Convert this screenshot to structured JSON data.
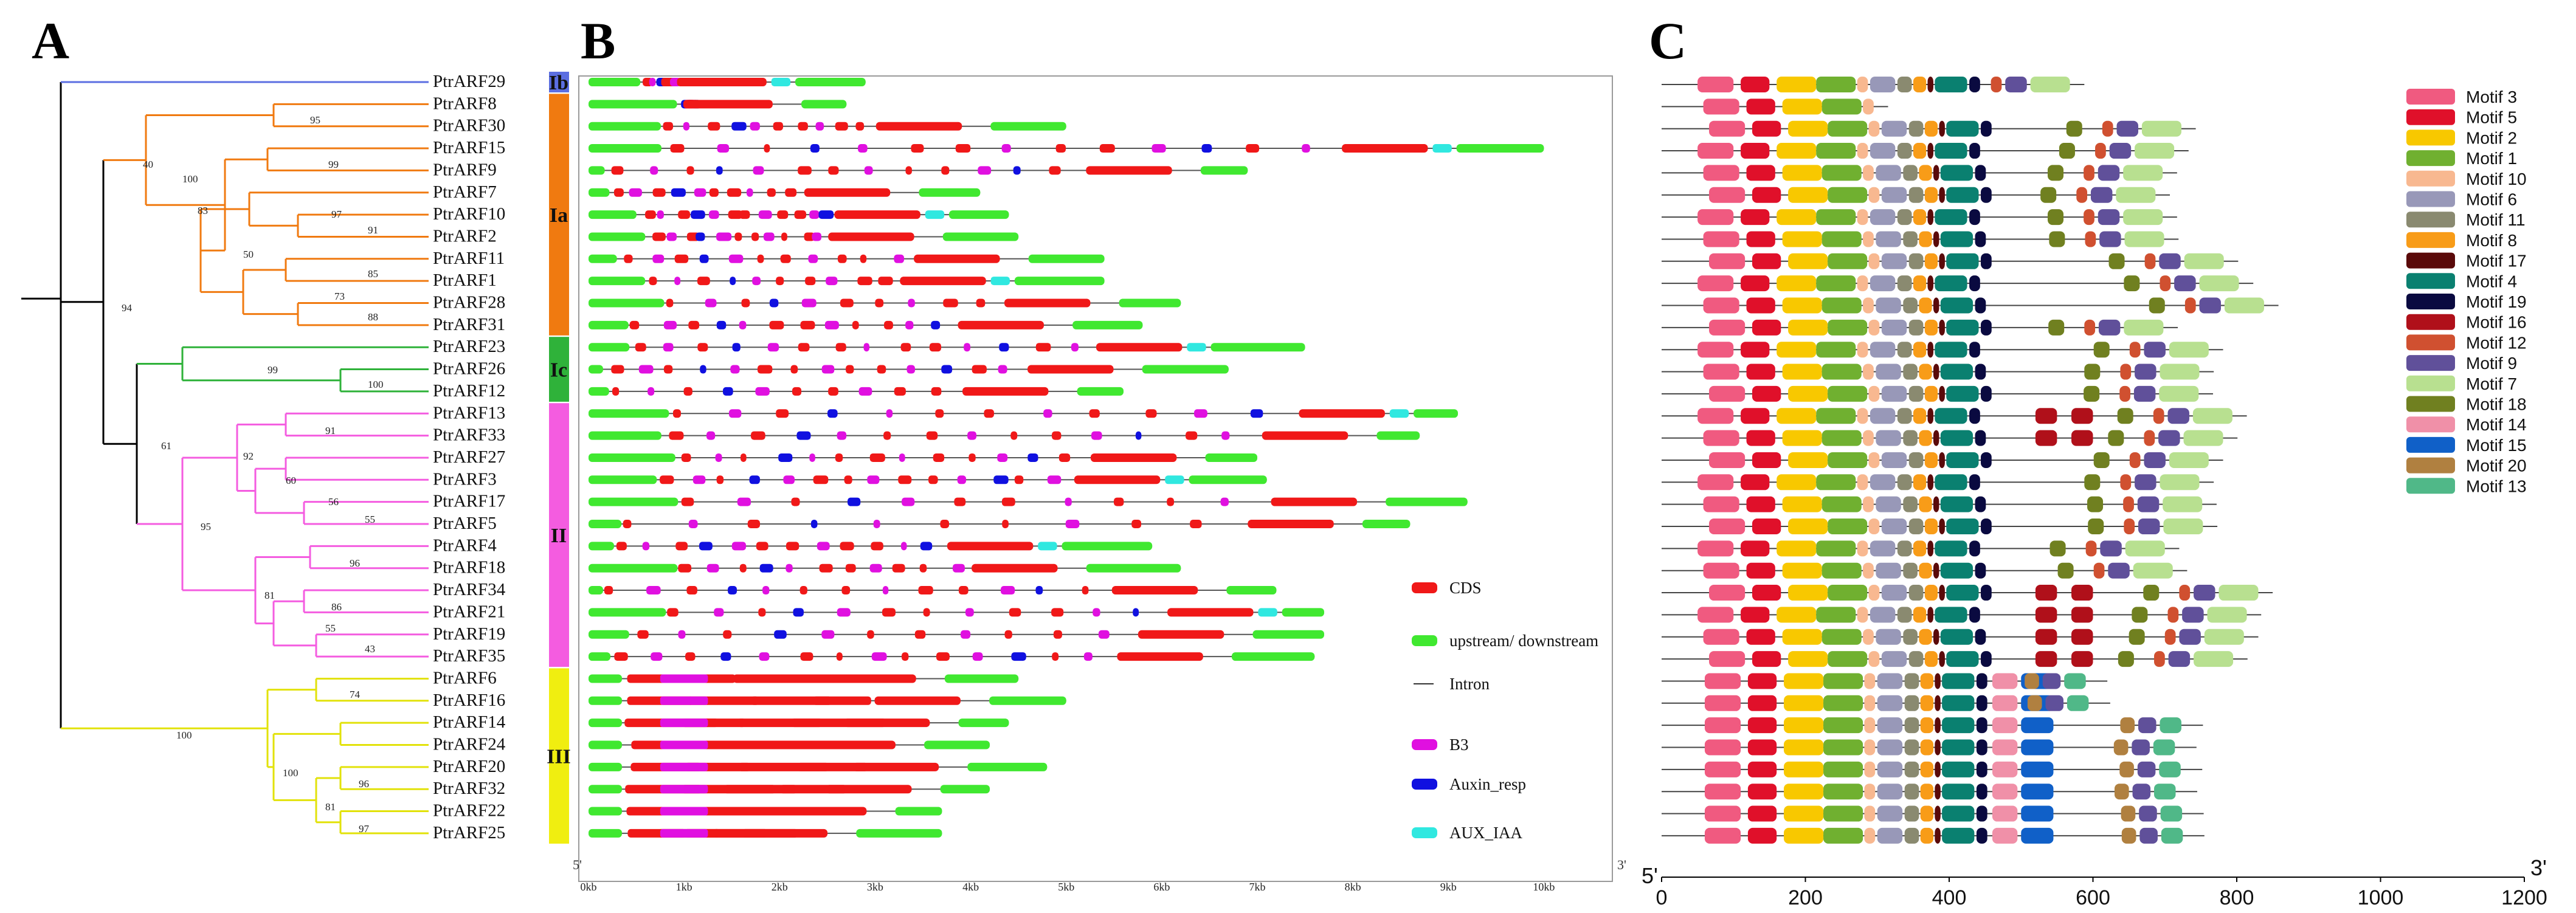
{
  "panels": {
    "A": {
      "label": "A"
    },
    "B": {
      "label": "B"
    },
    "C": {
      "label": "C"
    }
  },
  "genes": [
    "PtrARF29",
    "PtrARF8",
    "PtrARF30",
    "PtrARF15",
    "PtrARF9",
    "PtrARF7",
    "PtrARF10",
    "PtrARF2",
    "PtrARF11",
    "PtrARF1",
    "PtrARF28",
    "PtrARF31",
    "PtrARF23",
    "PtrARF26",
    "PtrARF12",
    "PtrARF13",
    "PtrARF33",
    "PtrARF27",
    "PtrARF3",
    "PtrARF17",
    "PtrARF5",
    "PtrARF4",
    "PtrARF18",
    "PtrARF34",
    "PtrARF21",
    "PtrARF19",
    "PtrARF35",
    "PtrARF6",
    "PtrARF16",
    "PtrARF14",
    "PtrARF24",
    "PtrARF20",
    "PtrARF32",
    "PtrARF22",
    "PtrARF25"
  ],
  "groups": [
    {
      "label": "Ib",
      "from": 0,
      "to": 0,
      "color": "#5b6ee1"
    },
    {
      "label": "Ia",
      "from": 1,
      "to": 11,
      "color": "#f07a10"
    },
    {
      "label": "Ic",
      "from": 12,
      "to": 14,
      "color": "#2fb23a"
    },
    {
      "label": "II",
      "from": 15,
      "to": 26,
      "color": "#f45ce0"
    },
    {
      "label": "III",
      "from": 27,
      "to": 34,
      "color": "#f0ee10"
    }
  ],
  "tree": {
    "bootstrap_labels": [
      "95",
      "40",
      "99",
      "83",
      "97",
      "91",
      "50",
      "85",
      "73",
      "88",
      "94",
      "99",
      "100",
      "61",
      "91",
      "92",
      "60",
      "56",
      "55",
      "95",
      "96",
      "81",
      "86",
      "55",
      "43",
      "100",
      "74",
      "100",
      "96",
      "81",
      "97",
      "100"
    ]
  },
  "gene_structure": {
    "axis_ticks": [
      "0kb",
      "1kb",
      "2kb",
      "3kb",
      "4kb",
      "5kb",
      "6kb",
      "7kb",
      "8kb",
      "9kb",
      "10kb"
    ],
    "axis_max_kb": 10.5,
    "end_5": "5'",
    "end_3": "3'",
    "legend": [
      {
        "label": "CDS",
        "kind": "CDS",
        "color": "#f01818"
      },
      {
        "label": "upstream/ downstream",
        "kind": "UTR",
        "color": "#40e830"
      },
      {
        "label": "Intron",
        "kind": "intron",
        "color": "#333333"
      },
      {
        "label": "B3",
        "kind": "B3",
        "color": "#e010e0"
      },
      {
        "label": "Auxin_resp",
        "kind": "Auxin",
        "color": "#1010e0"
      },
      {
        "label": "AUX_IAA",
        "kind": "AUX",
        "color": "#30e8e0"
      }
    ],
    "gene_lengths_kb": [
      2.9,
      2.7,
      5.0,
      10.0,
      6.9,
      4.1,
      4.4,
      4.5,
      5.4,
      5.4,
      6.2,
      5.8,
      7.5,
      6.7,
      5.6,
      9.1,
      8.7,
      7.0,
      7.1,
      9.2,
      8.6,
      5.9,
      6.2,
      7.2,
      7.7,
      7.7,
      7.6,
      4.5,
      5.0,
      4.4,
      4.2,
      4.8,
      4.2,
      3.7,
      3.7
    ]
  },
  "motifs": {
    "axis_ticks": [
      "0",
      "200",
      "400",
      "600",
      "800",
      "1000",
      "1200"
    ],
    "axis_max": 1200,
    "end_5": "5'",
    "end_3": "3'",
    "legend": [
      {
        "label": "Motif 3",
        "color": "#f05a80"
      },
      {
        "label": "Motif 5",
        "color": "#e0102a"
      },
      {
        "label": "Motif 2",
        "color": "#f8c800"
      },
      {
        "label": "Motif 1",
        "color": "#70b030"
      },
      {
        "label": "Motif 10",
        "color": "#f8b890"
      },
      {
        "label": "Motif 6",
        "color": "#9898b8"
      },
      {
        "label": "Motif 11",
        "color": "#8a8a70"
      },
      {
        "label": "Motif 8",
        "color": "#f89c18"
      },
      {
        "label": "Motif 17",
        "color": "#5a0a0a"
      },
      {
        "label": "Motif 4",
        "color": "#0a8070"
      },
      {
        "label": "Motif 19",
        "color": "#0a0a40"
      },
      {
        "label": "Motif 16",
        "color": "#b0101a"
      },
      {
        "label": "Motif 12",
        "color": "#d05030"
      },
      {
        "label": "Motif 9",
        "color": "#60509a"
      },
      {
        "label": "Motif 7",
        "color": "#b8e090"
      },
      {
        "label": "Motif 18",
        "color": "#708020"
      },
      {
        "label": "Motif 14",
        "color": "#f090a8"
      },
      {
        "label": "Motif 15",
        "color": "#1060c8"
      },
      {
        "label": "Motif 20",
        "color": "#b08040"
      },
      {
        "label": "Motif 13",
        "color": "#50b888"
      }
    ],
    "protein_lengths": [
      588,
      315,
      743,
      733,
      717,
      707,
      717,
      719,
      802,
      823,
      858,
      718,
      781,
      768,
      767,
      814,
      801,
      781,
      768,
      772,
      773,
      720,
      731,
      850,
      834,
      830,
      815,
      620,
      624,
      753,
      744,
      752,
      745,
      754,
      755
    ]
  }
}
